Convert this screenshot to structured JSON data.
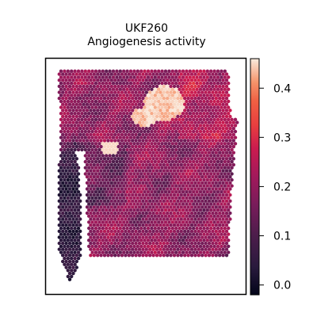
{
  "chart_data": {
    "type": "heatmap",
    "title": "UKF260",
    "subtitle": "Angiogenesis activity",
    "xlabel": "",
    "ylabel": "",
    "grid": false,
    "colormap": "rocket",
    "colorbar": {
      "range": [
        -0.02,
        0.46
      ],
      "ticks": [
        0.0,
        0.1,
        0.2,
        0.3,
        0.4
      ],
      "tick_labels": [
        "0.0",
        "0.1",
        "0.2",
        "0.3",
        "0.4"
      ]
    },
    "regions": [
      {
        "name": "tissue-main",
        "value_range": [
          0.08,
          0.3
        ]
      },
      {
        "name": "tissue-left-strip",
        "value_range": [
          0.0,
          0.1
        ]
      },
      {
        "name": "hotspot-upper-center",
        "value_range": [
          0.35,
          0.46
        ]
      }
    ]
  }
}
